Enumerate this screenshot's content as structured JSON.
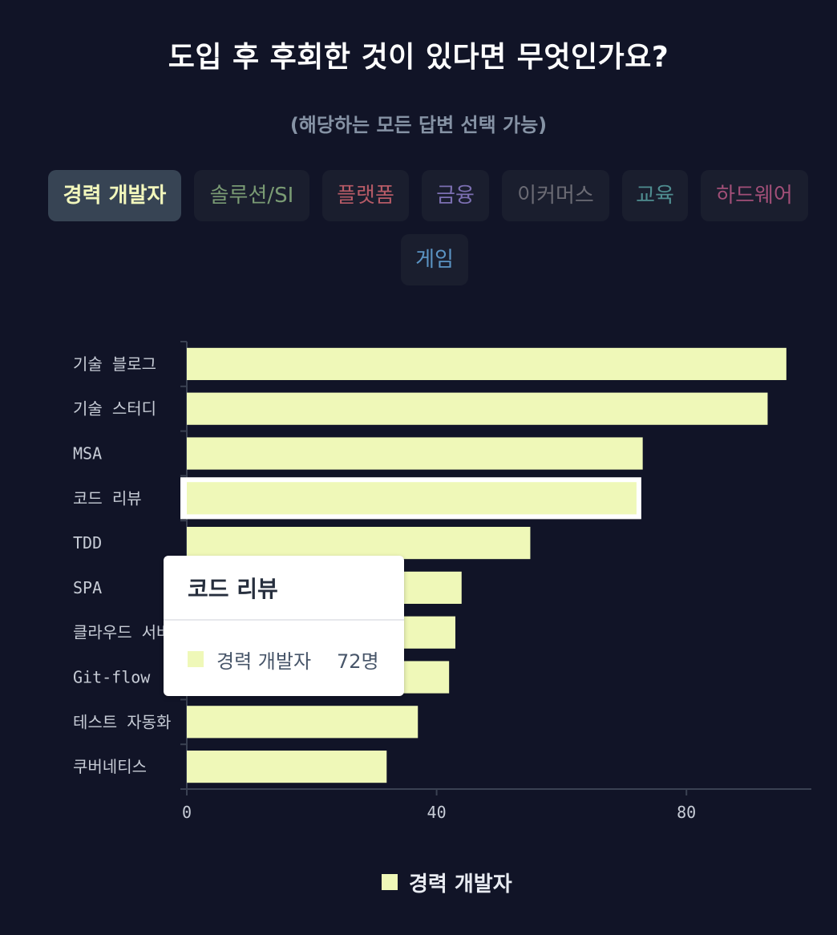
{
  "header": {
    "title": "도입 후 후회한 것이 있다면 무엇인가요?",
    "subtitle": "(해당하는 모든 답변 선택 가능)"
  },
  "tabs": [
    {
      "label": "경력 개발자",
      "color": "#f2f7bc",
      "active": true
    },
    {
      "label": "솔루션/SI",
      "color": "#7a9b74",
      "active": false
    },
    {
      "label": "플랫폼",
      "color": "#b65a66",
      "active": false
    },
    {
      "label": "금융",
      "color": "#7c6fb2",
      "active": false
    },
    {
      "label": "이커머스",
      "color": "#6b6b74",
      "active": false
    },
    {
      "label": "교육",
      "color": "#4f8d90",
      "active": false
    },
    {
      "label": "하드웨어",
      "color": "#a24f78",
      "active": false
    },
    {
      "label": "게임",
      "color": "#5b94c4",
      "active": false
    }
  ],
  "chart_data": {
    "type": "bar",
    "orientation": "horizontal",
    "categories": [
      "기술 블로그",
      "기술 스터디",
      "MSA",
      "코드 리뷰",
      "TDD",
      "SPA",
      "클라우드 서버리스",
      "Git-flow",
      "테스트 자동화",
      "쿠버네티스"
    ],
    "series": [
      {
        "name": "경력 개발자",
        "values": [
          96,
          93,
          73,
          72,
          55,
          44,
          43,
          42,
          37,
          32
        ],
        "color": "#eff8b8"
      }
    ],
    "x_ticks": [
      0,
      40,
      80
    ],
    "xlim": [
      0,
      100
    ],
    "grid": false,
    "highlighted_category": "코드 리뷰",
    "legend_position": "bottom-center"
  },
  "tooltip": {
    "title": "코드 리뷰",
    "series": "경력 개발자",
    "value": "72명"
  },
  "legend": {
    "label": "경력 개발자"
  }
}
